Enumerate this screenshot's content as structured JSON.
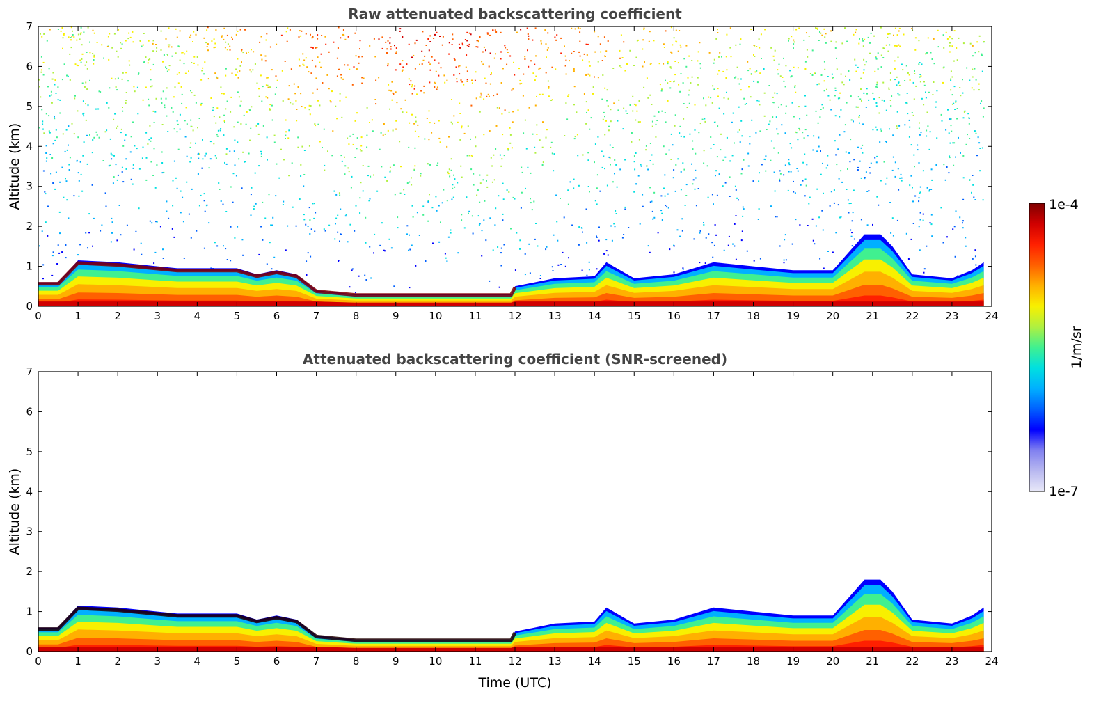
{
  "chart_data": [
    {
      "type": "heatmap",
      "title": "Raw attenuated backscattering coefficient",
      "xlabel": "",
      "ylabel": "Altitude (km)",
      "xlim": [
        0,
        24
      ],
      "ylim": [
        0,
        7
      ],
      "x_ticks": [
        "0",
        "1",
        "2",
        "3",
        "4",
        "5",
        "6",
        "7",
        "8",
        "9",
        "10",
        "11",
        "12",
        "13",
        "14",
        "15",
        "16",
        "17",
        "18",
        "19",
        "20",
        "21",
        "22",
        "23",
        "24"
      ],
      "y_ticks": [
        "0",
        "1",
        "2",
        "3",
        "4",
        "5",
        "6",
        "7"
      ],
      "time_utc": [
        0,
        0.5,
        1,
        2,
        3,
        3.5,
        4,
        4.5,
        5,
        5.5,
        6,
        6.5,
        7,
        8,
        9,
        10,
        11,
        11.9,
        12,
        13,
        14,
        14.3,
        15,
        16,
        17,
        18,
        19,
        20,
        20.8,
        21.2,
        21.5,
        22,
        23,
        23.5,
        23.8
      ],
      "layer_top_km": [
        0.6,
        0.6,
        1.15,
        1.1,
        1.0,
        0.95,
        0.95,
        0.95,
        0.95,
        0.8,
        0.9,
        0.8,
        0.4,
        0.3,
        0.3,
        0.3,
        0.3,
        0.3,
        0.5,
        0.7,
        0.75,
        1.1,
        0.7,
        0.8,
        1.1,
        1.0,
        0.9,
        0.9,
        1.8,
        1.8,
        1.5,
        0.8,
        0.7,
        0.9,
        1.1
      ],
      "noise_above_layer": true,
      "data_end_utc": 23.8
    },
    {
      "type": "heatmap",
      "title": "Attenuated backscattering coefficient (SNR-screened)",
      "xlabel": "Time (UTC)",
      "ylabel": "Altitude (km)",
      "xlim": [
        0,
        24
      ],
      "ylim": [
        0,
        7
      ],
      "x_ticks": [
        "0",
        "1",
        "2",
        "3",
        "4",
        "5",
        "6",
        "7",
        "8",
        "9",
        "10",
        "11",
        "12",
        "13",
        "14",
        "15",
        "16",
        "17",
        "18",
        "19",
        "20",
        "21",
        "22",
        "23",
        "24"
      ],
      "y_ticks": [
        "0",
        "1",
        "2",
        "3",
        "4",
        "5",
        "6",
        "7"
      ],
      "time_utc": [
        0,
        0.5,
        1,
        2,
        3,
        3.5,
        4,
        4.5,
        5,
        5.5,
        6,
        6.5,
        7,
        8,
        9,
        10,
        11,
        11.9,
        12,
        13,
        14,
        14.3,
        15,
        16,
        17,
        18,
        19,
        20,
        20.8,
        21.2,
        21.5,
        22,
        23,
        23.5,
        23.8
      ],
      "layer_top_km": [
        0.6,
        0.6,
        1.15,
        1.1,
        1.0,
        0.95,
        0.95,
        0.95,
        0.95,
        0.8,
        0.9,
        0.8,
        0.4,
        0.3,
        0.3,
        0.3,
        0.3,
        0.3,
        0.5,
        0.7,
        0.75,
        1.1,
        0.7,
        0.8,
        1.1,
        1.0,
        0.9,
        0.9,
        1.8,
        1.8,
        1.5,
        0.8,
        0.7,
        0.9,
        1.1
      ],
      "noise_above_layer": false,
      "data_end_utc": 23.8
    }
  ],
  "colorbar": {
    "label": "1/m/sr",
    "max_label": "1e-4",
    "min_label": "1e-7",
    "colors": [
      "#e8e8f8",
      "#b8b8f0",
      "#8080f0",
      "#0000ff",
      "#0060ff",
      "#00b0ff",
      "#00e0e0",
      "#40f090",
      "#b0f040",
      "#f8f000",
      "#ffb000",
      "#ff6000",
      "#ff2000",
      "#d00000",
      "#800000"
    ]
  }
}
